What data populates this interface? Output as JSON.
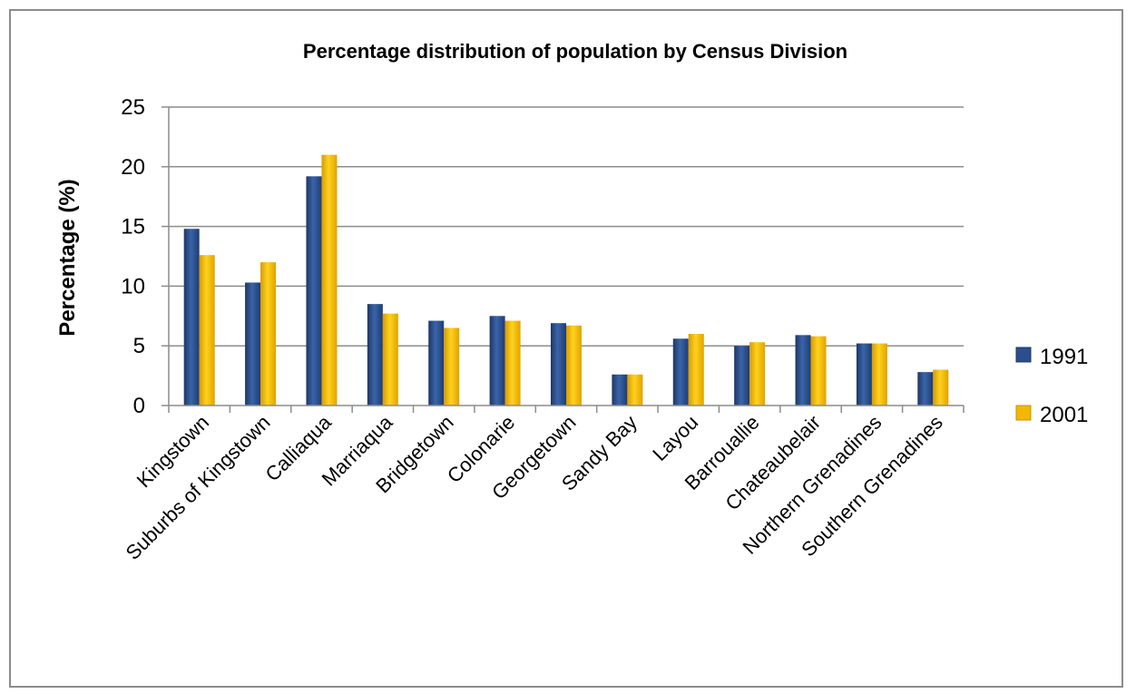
{
  "chart_data": {
    "type": "bar",
    "title": "Percentage distribution of population by Census Division",
    "xlabel": "",
    "ylabel": "Percentage (%)",
    "ylim": [
      0,
      25
    ],
    "yticks": [
      0,
      5,
      10,
      15,
      20,
      25
    ],
    "grid": true,
    "legend_position": "right",
    "categories": [
      "Kingstown",
      "Suburbs of Kingstown",
      "Calliaqua",
      "Marriaqua",
      "Bridgetown",
      "Colonarie",
      "Georgetown",
      "Sandy Bay",
      "Layou",
      "Barrouallie",
      "Chateaubelair",
      "Northern Grenadines",
      "Southern Grenadines"
    ],
    "series": [
      {
        "name": "1991",
        "color": "#2b4f8c",
        "values": [
          14.8,
          10.3,
          19.2,
          8.5,
          7.1,
          7.5,
          6.9,
          2.6,
          5.6,
          5.0,
          5.9,
          5.2,
          2.8
        ]
      },
      {
        "name": "2001",
        "color": "#f2b705",
        "values": [
          12.6,
          12.0,
          21.0,
          7.7,
          6.5,
          7.1,
          6.7,
          2.6,
          6.0,
          5.3,
          5.8,
          5.2,
          3.0
        ]
      }
    ]
  }
}
